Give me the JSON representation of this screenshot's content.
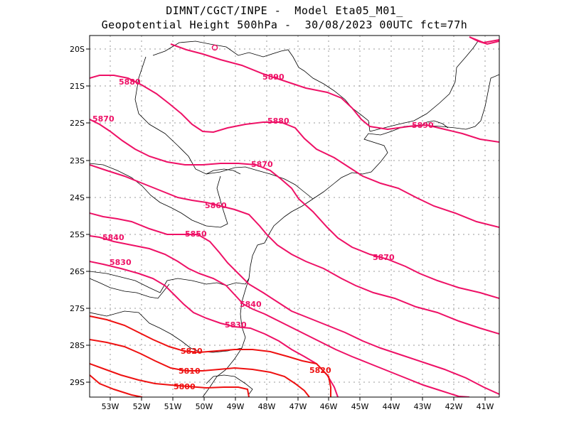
{
  "header": {
    "line1": "DIMNT/CGCT/INPE -  Model Eta05_M01_",
    "line2": "Geopotential Height 500hPa -  30/08/2023 00UTC fct=77h"
  },
  "map": {
    "lat_labels": [
      "20S",
      "21S",
      "22S",
      "23S",
      "24S",
      "25S",
      "26S",
      "27S",
      "28S",
      "29S"
    ],
    "lon_labels": [
      "53W",
      "52W",
      "51W",
      "50W",
      "49W",
      "48W",
      "47W",
      "46W",
      "45W",
      "44W",
      "43W",
      "42W",
      "41W"
    ],
    "contour_labels": [
      "5890",
      "5880",
      "5890",
      "5880",
      "5870",
      "5870",
      "5860",
      "5850",
      "5840",
      "5870",
      "5830",
      "5840",
      "5830",
      "5820",
      "5820",
      "5810",
      "5800"
    ],
    "colors": {
      "contour_high": "#ee1166",
      "contour_low": "#ee1111",
      "coast": "#000000",
      "grid": "#9a9a9a"
    }
  }
}
